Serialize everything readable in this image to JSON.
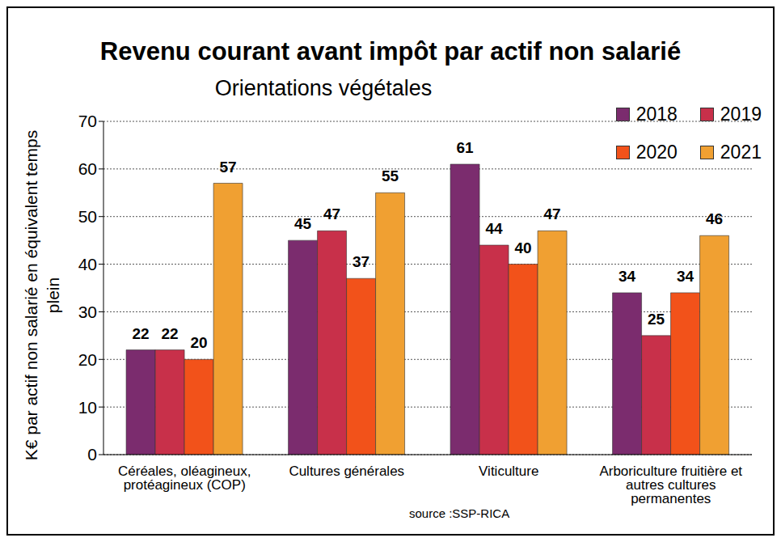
{
  "chart_data": {
    "type": "bar",
    "title": "Revenu courant avant impôt par actif non salarié",
    "subtitle": "Orientations végétales",
    "y_label": "K€ par actif non salarié en équivalent temps plein",
    "source": "source :SSP-RICA",
    "categories": [
      "Céréales, oléagineux, protéagineux (COP)",
      "Cultures générales",
      "Viticulture",
      "Arboriculture fruitière et autres cultures permanentes"
    ],
    "series": [
      {
        "name": "2018",
        "color": "#7b2c6e",
        "values": [
          22,
          45,
          61,
          34
        ]
      },
      {
        "name": "2019",
        "color": "#c8304a",
        "values": [
          22,
          47,
          44,
          25
        ]
      },
      {
        "name": "2020",
        "color": "#f2521a",
        "values": [
          20,
          37,
          40,
          34
        ]
      },
      {
        "name": "2021",
        "color": "#f0a032",
        "values": [
          57,
          55,
          47,
          46
        ]
      }
    ],
    "ylim": [
      0,
      70
    ],
    "yticks": [
      0,
      10,
      20,
      30,
      40,
      50,
      60,
      70
    ],
    "grid": true,
    "legend": "upper right",
    "data_labels": true
  }
}
